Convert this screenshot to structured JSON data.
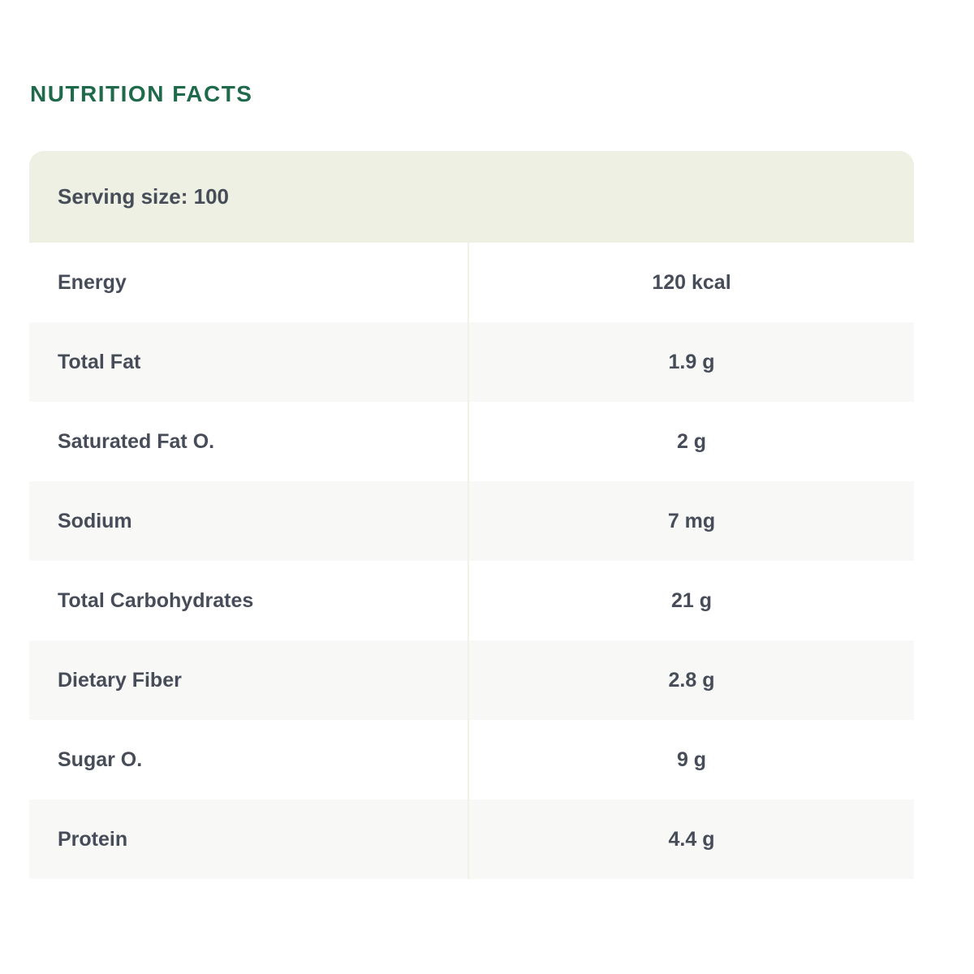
{
  "page": {
    "title": "NUTRITION FACTS"
  },
  "card": {
    "serving_label": "Serving size: 100",
    "rows": [
      {
        "label": "Energy",
        "value": "120 kcal"
      },
      {
        "label": "Total Fat",
        "value": "1.9 g"
      },
      {
        "label": "Saturated Fat O.",
        "value": "2 g"
      },
      {
        "label": "Sodium",
        "value": "7 mg"
      },
      {
        "label": "Total Carbohydrates",
        "value": "21 g"
      },
      {
        "label": "Dietary Fiber",
        "value": "2.8 g"
      },
      {
        "label": "Sugar O.",
        "value": "9 g"
      },
      {
        "label": "Protein",
        "value": "4.4 g"
      }
    ]
  },
  "colors": {
    "title_green": "#1f6a4b",
    "header_background": "#edf0e2",
    "stripe_background": "#f8f8f7",
    "column_divider": "#f0f2e9",
    "text_dark": "#474c59",
    "page_background": "#ffffff"
  }
}
